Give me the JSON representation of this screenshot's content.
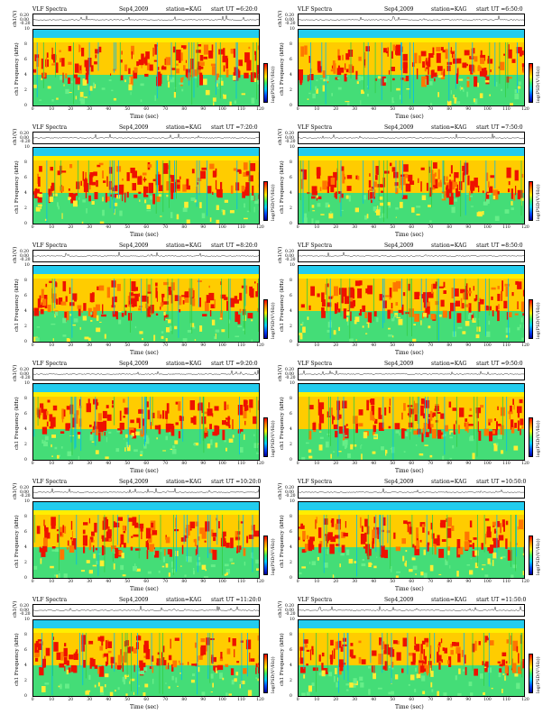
{
  "chart_data": [
    {
      "type": "heatmap",
      "title": "VLF Spectra",
      "date": "Sep4,2009",
      "station": "station=KAG",
      "start": "start  UT =6:20:0",
      "wave_ylabel": "ch1(V)",
      "wave_ticks": [
        "0.20",
        "0.00",
        "-0.20"
      ],
      "ylabel": "ch1 Frequency  (kHz)",
      "yticks": [
        "10",
        "8",
        "6",
        "4",
        "2",
        "0"
      ],
      "xlabel": "Time  (sec)",
      "xticks": [
        "0",
        "10",
        "20",
        "30",
        "40",
        "50",
        "60",
        "70",
        "80",
        "90",
        "100",
        "110",
        "120"
      ],
      "ylim": [
        0,
        10
      ],
      "xlim": [
        0,
        120
      ],
      "colorbar_label": "log(PSD(V²/Hz))",
      "colorscale": [
        "#000099",
        "#0044ff",
        "#00ccff",
        "#33ee66",
        "#ffee00",
        "#ff8800",
        "#ee0000"
      ]
    },
    {
      "type": "heatmap",
      "title": "VLF Spectra",
      "date": "Sep4,2009",
      "station": "station=KAG",
      "start": "start  UT =6:50:0",
      "wave_ylabel": "ch1(V)",
      "wave_ticks": [
        "0.20",
        "0.00",
        "-0.20"
      ],
      "ylabel": "ch1 Frequency  (kHz)",
      "yticks": [
        "10",
        "8",
        "6",
        "4",
        "2",
        "0"
      ],
      "xlabel": "Time  (sec)",
      "xticks": [
        "0",
        "10",
        "20",
        "30",
        "40",
        "50",
        "60",
        "70",
        "80",
        "90",
        "100",
        "110",
        "120"
      ],
      "ylim": [
        0,
        10
      ],
      "xlim": [
        0,
        120
      ],
      "colorbar_label": "log(PSD(V²/Hz))",
      "colorscale": [
        "#000099",
        "#0044ff",
        "#00ccff",
        "#33ee66",
        "#ffee00",
        "#ff8800",
        "#ee0000"
      ]
    },
    {
      "type": "heatmap",
      "title": "VLF Spectra",
      "date": "Sep4,2009",
      "station": "station=KAG",
      "start": "start  UT =7:20:0",
      "wave_ylabel": "ch1(V)",
      "wave_ticks": [
        "0.20",
        "0.00",
        "-0.20"
      ],
      "ylabel": "ch1 Frequency  (kHz)",
      "yticks": [
        "10",
        "8",
        "6",
        "4",
        "2",
        "0"
      ],
      "xlabel": "Time  (sec)",
      "xticks": [
        "0",
        "10",
        "20",
        "30",
        "40",
        "50",
        "60",
        "70",
        "80",
        "90",
        "100",
        "110",
        "120"
      ],
      "ylim": [
        0,
        10
      ],
      "xlim": [
        0,
        120
      ],
      "colorbar_label": "log(PSD(V²/Hz))",
      "colorscale": [
        "#000099",
        "#0044ff",
        "#00ccff",
        "#33ee66",
        "#ffee00",
        "#ff8800",
        "#ee0000"
      ]
    },
    {
      "type": "heatmap",
      "title": "VLF Spectra",
      "date": "Sep4,2009",
      "station": "station=KAG",
      "start": "start  UT =7:50:0",
      "wave_ylabel": "ch1(V)",
      "wave_ticks": [
        "0.20",
        "0.00",
        "-0.20"
      ],
      "ylabel": "ch1 Frequency  (kHz)",
      "yticks": [
        "10",
        "8",
        "6",
        "4",
        "2",
        "0"
      ],
      "xlabel": "Time  (sec)",
      "xticks": [
        "0",
        "10",
        "20",
        "30",
        "40",
        "50",
        "60",
        "70",
        "80",
        "90",
        "100",
        "110",
        "120"
      ],
      "ylim": [
        0,
        10
      ],
      "xlim": [
        0,
        120
      ],
      "colorbar_label": "log(PSD(V²/Hz))",
      "colorscale": [
        "#000099",
        "#0044ff",
        "#00ccff",
        "#33ee66",
        "#ffee00",
        "#ff8800",
        "#ee0000"
      ]
    },
    {
      "type": "heatmap",
      "title": "VLF Spectra",
      "date": "Sep4,2009",
      "station": "station=KAG",
      "start": "start  UT =8:20:0",
      "wave_ylabel": "ch1(V)",
      "wave_ticks": [
        "0.20",
        "0.00",
        "-0.20"
      ],
      "ylabel": "ch1 Frequency  (kHz)",
      "yticks": [
        "10",
        "8",
        "6",
        "4",
        "2",
        "0"
      ],
      "xlabel": "Time  (sec)",
      "xticks": [
        "0",
        "10",
        "20",
        "30",
        "40",
        "50",
        "60",
        "70",
        "80",
        "90",
        "100",
        "110",
        "120"
      ],
      "ylim": [
        0,
        10
      ],
      "xlim": [
        0,
        120
      ],
      "colorbar_label": "log(PSD(V²/Hz))",
      "colorscale": [
        "#000099",
        "#0044ff",
        "#00ccff",
        "#33ee66",
        "#ffee00",
        "#ff8800",
        "#ee0000"
      ]
    },
    {
      "type": "heatmap",
      "title": "VLF Spectra",
      "date": "Sep4,2009",
      "station": "station=KAG",
      "start": "start  UT =8:50:0",
      "wave_ylabel": "ch1(V)",
      "wave_ticks": [
        "0.20",
        "0.00",
        "-0.20"
      ],
      "ylabel": "ch1 Frequency  (kHz)",
      "yticks": [
        "10",
        "8",
        "6",
        "4",
        "2",
        "0"
      ],
      "xlabel": "Time  (sec)",
      "xticks": [
        "0",
        "10",
        "20",
        "30",
        "40",
        "50",
        "60",
        "70",
        "80",
        "90",
        "100",
        "110",
        "120"
      ],
      "ylim": [
        0,
        10
      ],
      "xlim": [
        0,
        120
      ],
      "colorbar_label": "log(PSD(V²/Hz))",
      "colorscale": [
        "#000099",
        "#0044ff",
        "#00ccff",
        "#33ee66",
        "#ffee00",
        "#ff8800",
        "#ee0000"
      ]
    },
    {
      "type": "heatmap",
      "title": "VLF Spectra",
      "date": "Sep4,2009",
      "station": "station=KAG",
      "start": "start  UT =9:20:0",
      "wave_ylabel": "ch1(V)",
      "wave_ticks": [
        "0.20",
        "0.00",
        "-0.20"
      ],
      "ylabel": "ch1 Frequency  (kHz)",
      "yticks": [
        "10",
        "8",
        "6",
        "4",
        "2",
        "0"
      ],
      "xlabel": "Time  (sec)",
      "xticks": [
        "0",
        "10",
        "20",
        "30",
        "40",
        "50",
        "60",
        "70",
        "80",
        "90",
        "100",
        "110",
        "120"
      ],
      "ylim": [
        0,
        10
      ],
      "xlim": [
        0,
        120
      ],
      "colorbar_label": "log(PSD(V²/Hz))",
      "colorscale": [
        "#000099",
        "#0044ff",
        "#00ccff",
        "#33ee66",
        "#ffee00",
        "#ff8800",
        "#ee0000"
      ]
    },
    {
      "type": "heatmap",
      "title": "VLF Spectra",
      "date": "Sep4,2009",
      "station": "station=KAG",
      "start": "start  UT =9:50:0",
      "wave_ylabel": "ch1(V)",
      "wave_ticks": [
        "0.20",
        "0.00",
        "-0.20"
      ],
      "ylabel": "ch1 Frequency  (kHz)",
      "yticks": [
        "10",
        "8",
        "6",
        "4",
        "2",
        "0"
      ],
      "xlabel": "Time  (sec)",
      "xticks": [
        "0",
        "10",
        "20",
        "30",
        "40",
        "50",
        "60",
        "70",
        "80",
        "90",
        "100",
        "110",
        "120"
      ],
      "ylim": [
        0,
        10
      ],
      "xlim": [
        0,
        120
      ],
      "colorbar_label": "log(PSD(V²/Hz))",
      "colorscale": [
        "#000099",
        "#0044ff",
        "#00ccff",
        "#33ee66",
        "#ffee00",
        "#ff8800",
        "#ee0000"
      ]
    },
    {
      "type": "heatmap",
      "title": "VLF Spectra",
      "date": "Sep4,2009",
      "station": "station=KAG",
      "start": "start  UT =10:20:0",
      "wave_ylabel": "ch1(V)",
      "wave_ticks": [
        "0.20",
        "0.00",
        "-0.20"
      ],
      "ylabel": "ch1 Frequency  (kHz)",
      "yticks": [
        "10",
        "8",
        "6",
        "4",
        "2",
        "0"
      ],
      "xlabel": "Time  (sec)",
      "xticks": [
        "0",
        "10",
        "20",
        "30",
        "40",
        "50",
        "60",
        "70",
        "80",
        "90",
        "100",
        "110",
        "120"
      ],
      "ylim": [
        0,
        10
      ],
      "xlim": [
        0,
        120
      ],
      "colorbar_label": "log(PSD(V²/Hz))",
      "colorscale": [
        "#000099",
        "#0044ff",
        "#00ccff",
        "#33ee66",
        "#ffee00",
        "#ff8800",
        "#ee0000"
      ]
    },
    {
      "type": "heatmap",
      "title": "VLF Spectra",
      "date": "Sep4,2009",
      "station": "station=KAG",
      "start": "start  UT =10:50:0",
      "wave_ylabel": "ch1(V)",
      "wave_ticks": [
        "0.20",
        "0.00",
        "-0.20"
      ],
      "ylabel": "ch1 Frequency  (kHz)",
      "yticks": [
        "10",
        "8",
        "6",
        "4",
        "2",
        "0"
      ],
      "xlabel": "Time  (sec)",
      "xticks": [
        "0",
        "10",
        "20",
        "30",
        "40",
        "50",
        "60",
        "70",
        "80",
        "90",
        "100",
        "110",
        "120"
      ],
      "ylim": [
        0,
        10
      ],
      "xlim": [
        0,
        120
      ],
      "colorbar_label": "log(PSD(V²/Hz))",
      "colorscale": [
        "#000099",
        "#0044ff",
        "#00ccff",
        "#33ee66",
        "#ffee00",
        "#ff8800",
        "#ee0000"
      ]
    },
    {
      "type": "heatmap",
      "title": "VLF Spectra",
      "date": "Sep4,2009",
      "station": "station=KAG",
      "start": "start  UT =11:20:0",
      "wave_ylabel": "ch1(V)",
      "wave_ticks": [
        "0.20",
        "0.00",
        "-0.20"
      ],
      "ylabel": "ch1 Frequency  (kHz)",
      "yticks": [
        "10",
        "8",
        "6",
        "4",
        "2",
        "0"
      ],
      "xlabel": "Time  (sec)",
      "xticks": [
        "0",
        "10",
        "20",
        "30",
        "40",
        "50",
        "60",
        "70",
        "80",
        "90",
        "100",
        "110",
        "120"
      ],
      "ylim": [
        0,
        10
      ],
      "xlim": [
        0,
        120
      ],
      "colorbar_label": "log(PSD(V²/Hz))",
      "colorscale": [
        "#000099",
        "#0044ff",
        "#00ccff",
        "#33ee66",
        "#ffee00",
        "#ff8800",
        "#ee0000"
      ]
    },
    {
      "type": "heatmap",
      "title": "VLF Spectra",
      "date": "Sep4,2009",
      "station": "station=KAG",
      "start": "start  UT =11:50:0",
      "wave_ylabel": "ch1(V)",
      "wave_ticks": [
        "0.20",
        "0.00",
        "-0.20"
      ],
      "ylabel": "ch1 Frequency  (kHz)",
      "yticks": [
        "10",
        "8",
        "6",
        "4",
        "2",
        "0"
      ],
      "xlabel": "Time  (sec)",
      "xticks": [
        "0",
        "10",
        "20",
        "30",
        "40",
        "50",
        "60",
        "70",
        "80",
        "90",
        "100",
        "110",
        "120"
      ],
      "ylim": [
        0,
        10
      ],
      "xlim": [
        0,
        120
      ],
      "colorbar_label": "log(PSD(V²/Hz))",
      "colorscale": [
        "#000099",
        "#0044ff",
        "#00ccff",
        "#33ee66",
        "#ffee00",
        "#ff8800",
        "#ee0000"
      ]
    }
  ]
}
